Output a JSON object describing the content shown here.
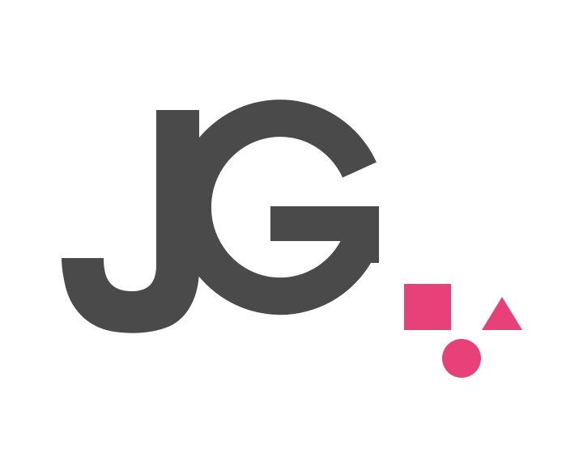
{
  "logo": {
    "monogram": "JG",
    "letter_color": "#4a4a4a",
    "accent_color": "#e8417a",
    "shapes": [
      "square-icon",
      "triangle-icon",
      "circle-icon"
    ]
  }
}
